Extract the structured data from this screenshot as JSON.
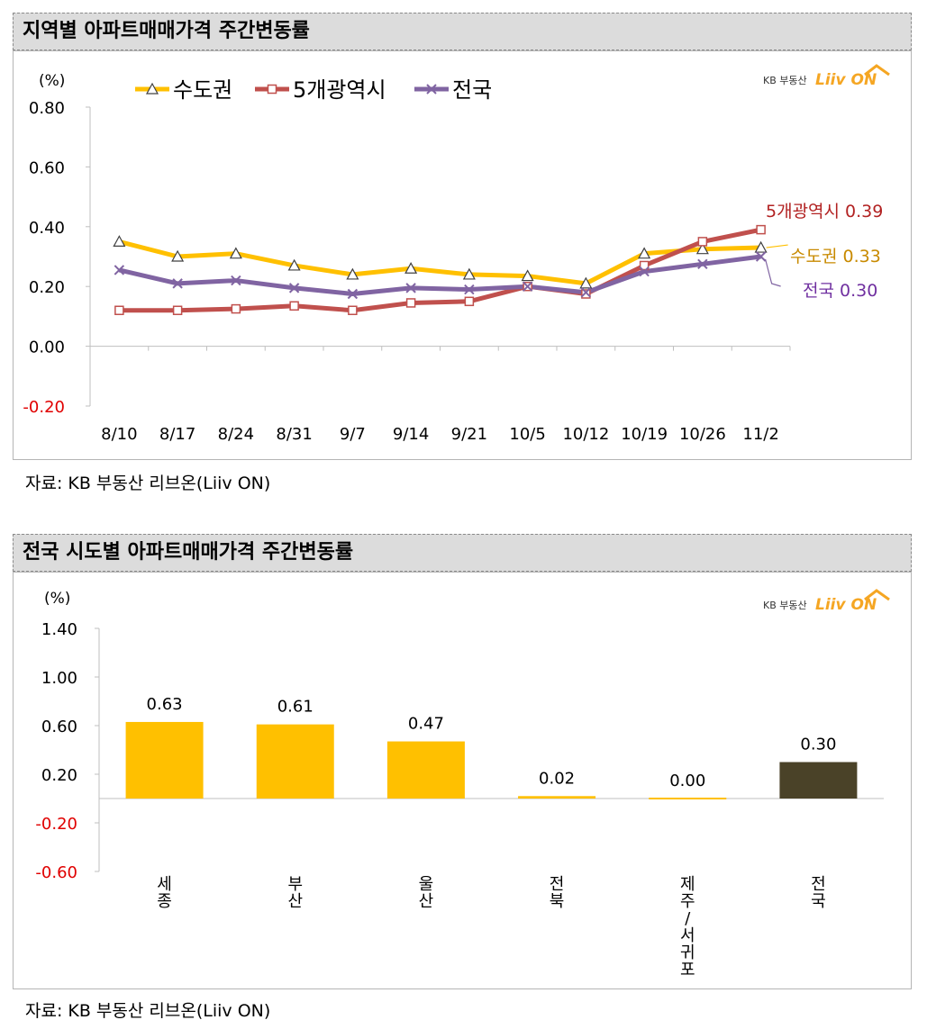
{
  "colors": {
    "capital": "#FFC000",
    "metro": "#C0504D",
    "national": "#8064A2",
    "capital_label": "#C88A00",
    "metro_label": "#B22222",
    "national_label": "#7030A0",
    "negative_tick": "#E00000",
    "bar_yellow": "#FFC000",
    "bar_dark": "#4A4228",
    "brand_orange": "#F5A623",
    "brand_text": "#333333"
  },
  "brand": {
    "kb": "KB 부동산",
    "logo": "Liiv ON"
  },
  "chart_data": [
    {
      "type": "line",
      "title": "지역별 아파트매매가격 주간변동률",
      "unit": "(%)",
      "source": "자료: KB 부동산  리브온(Liiv ON)",
      "categories": [
        "8/10",
        "8/17",
        "8/24",
        "8/31",
        "9/7",
        "9/14",
        "9/21",
        "10/5",
        "10/12",
        "10/19",
        "10/26",
        "11/2"
      ],
      "ylim": [
        -0.2,
        0.8
      ],
      "yticks": [
        "0.80",
        "0.60",
        "0.40",
        "0.20",
        "0.00",
        "-0.20"
      ],
      "ytick_values": [
        0.8,
        0.6,
        0.4,
        0.2,
        0.0,
        -0.2
      ],
      "series": [
        {
          "name": "수도권",
          "marker": "triangle",
          "values": [
            0.35,
            0.3,
            0.31,
            0.27,
            0.24,
            0.26,
            0.24,
            0.235,
            0.21,
            0.31,
            0.325,
            0.33
          ],
          "end_label": "수도권 0.33"
        },
        {
          "name": "5개광역시",
          "marker": "square",
          "values": [
            0.12,
            0.12,
            0.125,
            0.135,
            0.12,
            0.145,
            0.15,
            0.2,
            0.175,
            0.27,
            0.35,
            0.39
          ],
          "end_label": "5개광역시 0.39"
        },
        {
          "name": "전국",
          "marker": "x",
          "values": [
            0.255,
            0.21,
            0.22,
            0.195,
            0.175,
            0.195,
            0.19,
            0.2,
            0.18,
            0.25,
            0.275,
            0.3
          ],
          "end_label": "전국 0.30"
        }
      ]
    },
    {
      "type": "bar",
      "title": "전국 시도별 아파트매매가격 주간변동률",
      "unit": "(%)",
      "source": "자료: KB 부동산  리브온(Liiv ON)",
      "categories": [
        "세종",
        "부산",
        "울산",
        "전북",
        "제주/서귀포",
        "전국"
      ],
      "values": [
        0.63,
        0.61,
        0.47,
        0.02,
        0.0,
        0.3
      ],
      "value_labels": [
        "0.63",
        "0.61",
        "0.47",
        "0.02",
        "0.00",
        "0.30"
      ],
      "ylim": [
        -0.6,
        1.4
      ],
      "yticks": [
        "1.40",
        "1.00",
        "0.60",
        "0.20",
        "-0.20",
        "-0.60"
      ],
      "ytick_values": [
        1.4,
        1.0,
        0.6,
        0.2,
        -0.2,
        -0.6
      ],
      "highlight": "전국"
    }
  ]
}
